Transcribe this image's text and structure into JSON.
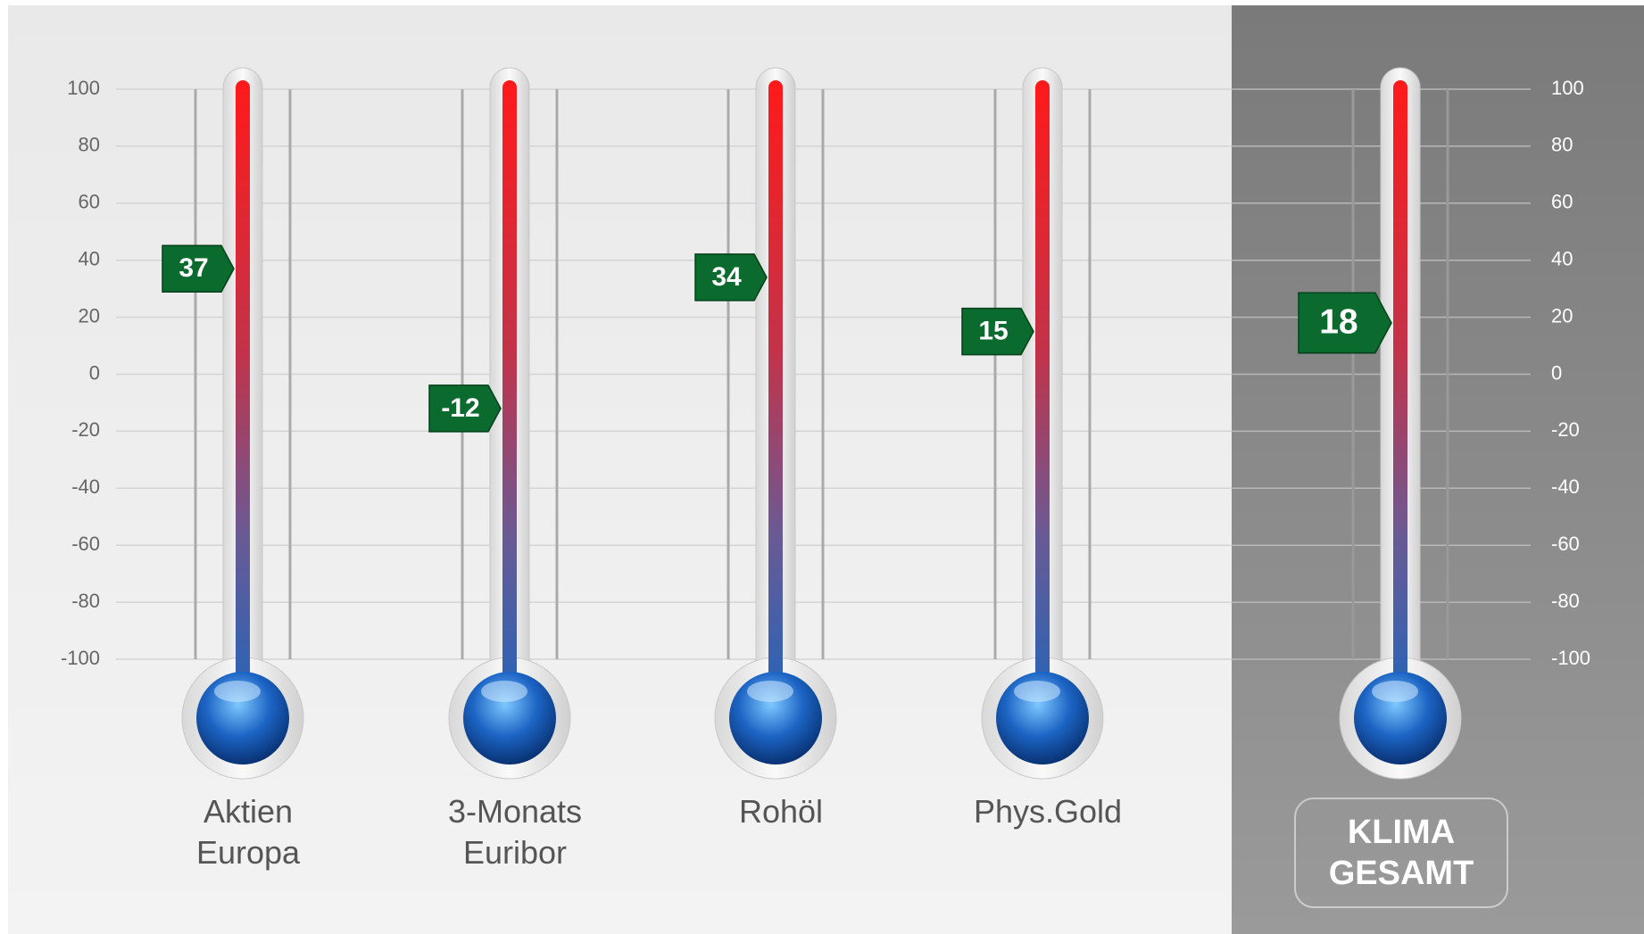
{
  "chart_data": {
    "type": "thermometer",
    "categories": [
      "Aktien\nEuropa",
      "3-Monats\nEuribor",
      "Rohöl",
      "Phys.Gold"
    ],
    "values": [
      37,
      -12,
      34,
      15
    ],
    "ylim": [
      -100,
      100
    ],
    "yticks": [
      100,
      80,
      60,
      40,
      20,
      0,
      -20,
      -40,
      -60,
      -80,
      -100
    ],
    "grid": true,
    "marker_color": "#0b6b2e",
    "summary": {
      "label": "KLIMA\nGESAMT",
      "value": 18
    }
  }
}
